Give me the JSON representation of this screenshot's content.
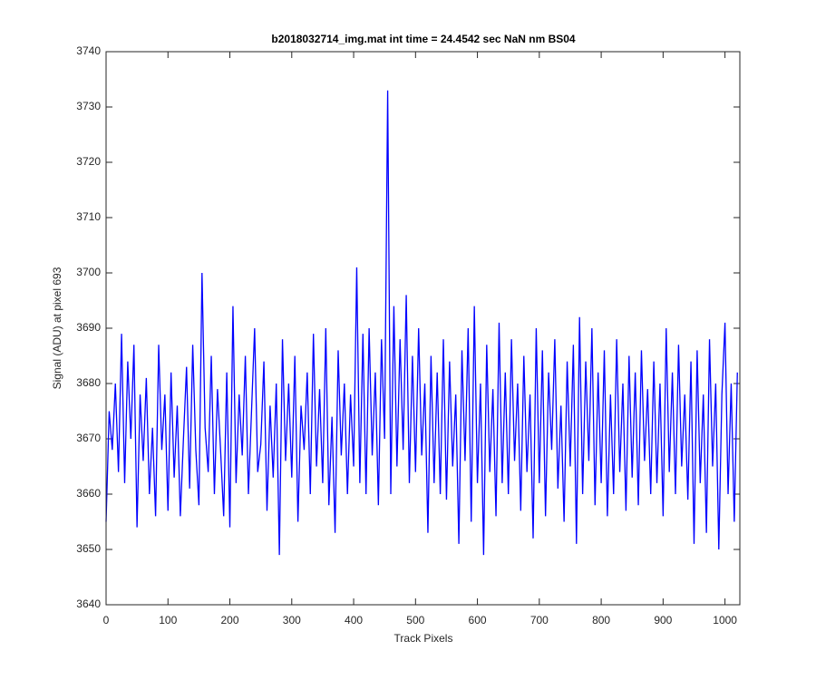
{
  "chart_data": {
    "type": "line",
    "title": "b2018032714_img.mat int time = 24.4542 sec  NaN nm BS04",
    "xlabel": "Track Pixels",
    "ylabel": "Signal (ADU) at pixel 693",
    "color": "#0000ff",
    "xlim": [
      0,
      1024
    ],
    "ylim": [
      3640,
      3740
    ],
    "xticks": [
      0,
      100,
      200,
      300,
      400,
      500,
      600,
      700,
      800,
      900,
      1000
    ],
    "yticks": [
      3640,
      3650,
      3660,
      3670,
      3680,
      3690,
      3700,
      3710,
      3720,
      3730,
      3740
    ],
    "x": [
      0,
      5,
      10,
      15,
      20,
      25,
      30,
      35,
      40,
      45,
      50,
      55,
      60,
      65,
      70,
      75,
      80,
      85,
      90,
      95,
      100,
      105,
      110,
      115,
      120,
      125,
      130,
      135,
      140,
      145,
      150,
      155,
      160,
      165,
      170,
      175,
      180,
      185,
      190,
      195,
      200,
      205,
      210,
      215,
      220,
      225,
      230,
      235,
      240,
      245,
      250,
      255,
      260,
      265,
      270,
      275,
      280,
      285,
      290,
      295,
      300,
      305,
      310,
      315,
      320,
      325,
      330,
      335,
      340,
      345,
      350,
      355,
      360,
      365,
      370,
      375,
      380,
      385,
      390,
      395,
      400,
      405,
      410,
      415,
      420,
      425,
      430,
      435,
      440,
      445,
      450,
      455,
      460,
      465,
      470,
      475,
      480,
      485,
      490,
      495,
      500,
      505,
      510,
      515,
      520,
      525,
      530,
      535,
      540,
      545,
      550,
      555,
      560,
      565,
      570,
      575,
      580,
      585,
      590,
      595,
      600,
      605,
      610,
      615,
      620,
      625,
      630,
      635,
      640,
      645,
      650,
      655,
      660,
      665,
      670,
      675,
      680,
      685,
      690,
      695,
      700,
      705,
      710,
      715,
      720,
      725,
      730,
      735,
      740,
      745,
      750,
      755,
      760,
      765,
      770,
      775,
      780,
      785,
      790,
      795,
      800,
      805,
      810,
      815,
      820,
      825,
      830,
      835,
      840,
      845,
      850,
      855,
      860,
      865,
      870,
      875,
      880,
      885,
      890,
      895,
      900,
      905,
      910,
      915,
      920,
      925,
      930,
      935,
      940,
      945,
      950,
      955,
      960,
      965,
      970,
      975,
      980,
      985,
      990,
      995,
      1000,
      1005,
      1010,
      1015,
      1020
    ],
    "values": [
      3655,
      3675,
      3668,
      3680,
      3664,
      3689,
      3662,
      3684,
      3670,
      3687,
      3654,
      3678,
      3666,
      3681,
      3660,
      3672,
      3656,
      3687,
      3668,
      3678,
      3657,
      3682,
      3663,
      3676,
      3656,
      3670,
      3683,
      3661,
      3687,
      3668,
      3658,
      3700,
      3672,
      3664,
      3685,
      3660,
      3679,
      3668,
      3656,
      3682,
      3654,
      3694,
      3662,
      3678,
      3667,
      3685,
      3660,
      3675,
      3690,
      3664,
      3669,
      3684,
      3657,
      3676,
      3663,
      3680,
      3649,
      3688,
      3666,
      3680,
      3663,
      3685,
      3655,
      3676,
      3668,
      3682,
      3660,
      3689,
      3665,
      3679,
      3662,
      3690,
      3658,
      3674,
      3653,
      3686,
      3667,
      3680,
      3660,
      3678,
      3665,
      3701,
      3662,
      3689,
      3660,
      3690,
      3667,
      3682,
      3658,
      3688,
      3670,
      3733,
      3660,
      3694,
      3665,
      3688,
      3668,
      3696,
      3662,
      3685,
      3664,
      3690,
      3667,
      3680,
      3653,
      3685,
      3662,
      3682,
      3660,
      3688,
      3659,
      3684,
      3665,
      3678,
      3651,
      3686,
      3666,
      3690,
      3655,
      3694,
      3662,
      3680,
      3649,
      3687,
      3664,
      3679,
      3656,
      3691,
      3662,
      3682,
      3660,
      3688,
      3666,
      3680,
      3657,
      3685,
      3664,
      3678,
      3652,
      3690,
      3662,
      3686,
      3656,
      3682,
      3668,
      3688,
      3661,
      3676,
      3655,
      3684,
      3665,
      3687,
      3651,
      3692,
      3660,
      3684,
      3666,
      3690,
      3658,
      3682,
      3662,
      3686,
      3656,
      3678,
      3660,
      3688,
      3664,
      3680,
      3657,
      3685,
      3663,
      3682,
      3658,
      3686,
      3666,
      3679,
      3660,
      3684,
      3662,
      3680,
      3656,
      3690,
      3664,
      3682,
      3660,
      3687,
      3665,
      3678,
      3659,
      3684,
      3651,
      3686,
      3662,
      3678,
      3653,
      3688,
      3665,
      3680,
      3650,
      3678,
      3691,
      3660,
      3680,
      3655,
      3682
    ]
  }
}
